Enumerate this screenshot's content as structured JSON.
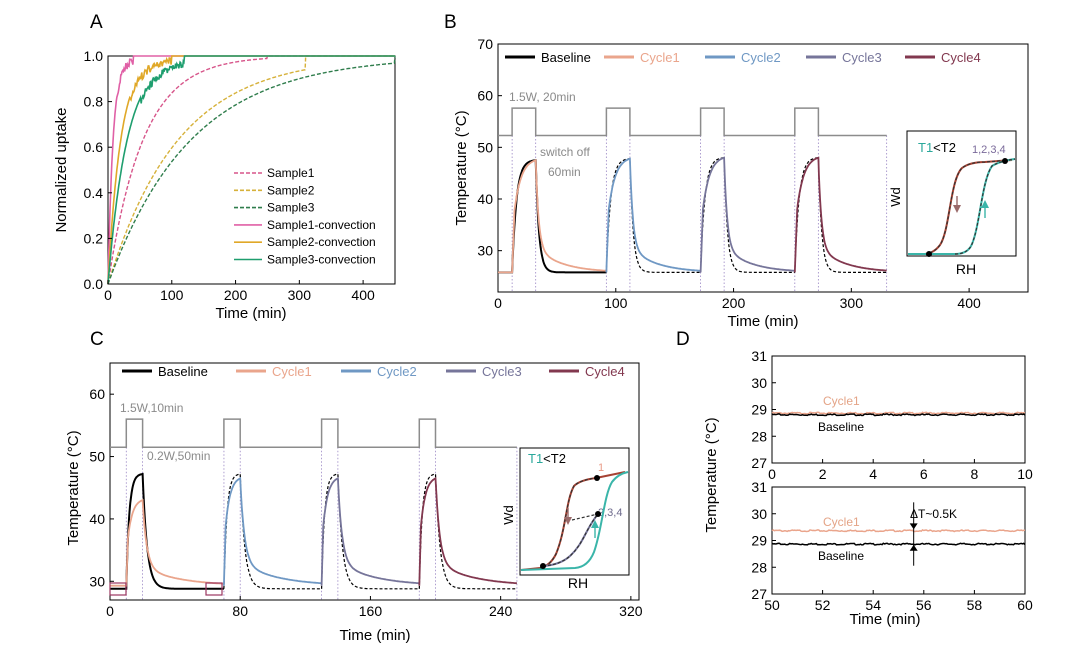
{
  "colors": {
    "sample1": "#d7558a",
    "sample2": "#d6b13a",
    "sample3": "#2f7d4c",
    "sample1_conv": "#e060a6",
    "sample2_conv": "#e0a828",
    "sample3_conv": "#1e9e6e",
    "baseline": "#000000",
    "cycle1": "#eaa58c",
    "cycle2": "#6f98c4",
    "cycle3": "#76759a",
    "cycle4": "#82384f",
    "power": "#8c8c8c",
    "axis": "#000000",
    "teal": "#3ab5a9",
    "inset_red": "#a64233",
    "inset_box": "#9b3660"
  },
  "chart_data": [
    {
      "panel": "A",
      "type": "line",
      "xlabel": "Time (min)",
      "ylabel": "Normalized uptake",
      "xlim": [
        0,
        450
      ],
      "ylim": [
        0,
        1
      ],
      "xticks": [
        0,
        100,
        200,
        300,
        400
      ],
      "yticks": [
        0.0,
        0.2,
        0.4,
        0.6,
        0.8,
        1.0
      ],
      "ytick_labels": [
        "0.0",
        "0.2",
        "0.4",
        "0.6",
        "0.8",
        "1.0"
      ],
      "legend_position": "bottom-right",
      "series": [
        {
          "name": "Sample1",
          "style": "dashed",
          "color_key": "sample1",
          "model": "exp",
          "tau": 55,
          "plateau_at": 250
        },
        {
          "name": "Sample2",
          "style": "dashed",
          "color_key": "sample2",
          "model": "exp",
          "tau": 110,
          "plateau_at": 310
        },
        {
          "name": "Sample3",
          "style": "dashed",
          "color_key": "sample3",
          "model": "exp",
          "tau": 130,
          "plateau_at": 450
        },
        {
          "name": "Sample1-convection",
          "style": "solid",
          "color_key": "sample1_conv",
          "model": "exp",
          "tau": 8,
          "plateau_at": 40
        },
        {
          "name": "Sample2-convection",
          "style": "solid",
          "color_key": "sample2_conv",
          "model": "exp",
          "tau": 20,
          "plateau_at": 100
        },
        {
          "name": "Sample3-convection",
          "style": "solid",
          "color_key": "sample3_conv",
          "model": "exp",
          "tau": 30,
          "plateau_at": 120
        }
      ]
    },
    {
      "panel": "B",
      "type": "line",
      "xlabel": "Time (min)",
      "ylabel": "Temperature (°C)",
      "xlim": [
        0,
        450
      ],
      "ylim": [
        22,
        70
      ],
      "xticks": [
        0,
        100,
        200,
        300,
        400
      ],
      "yticks": [
        30,
        40,
        50,
        60,
        70
      ],
      "legend_position": "top",
      "legend": [
        "Baseline",
        "Cycle1",
        "Cycle2",
        "Cycle3",
        "Cycle4"
      ],
      "power_trace": {
        "baseline": 52.3,
        "high": 57.6,
        "x_start": 0,
        "x_end": 330,
        "pulses": [
          [
            12,
            32
          ],
          [
            92,
            112
          ],
          [
            172,
            192
          ],
          [
            252,
            272
          ]
        ]
      },
      "cycles": [
        {
          "name": "Baseline",
          "color_key": "baseline",
          "start": 12,
          "end": 32,
          "tmin": 25.8,
          "tmax": 47.5,
          "tail": 60,
          "style": "solid"
        },
        {
          "name": "Cycle1",
          "color_key": "cycle1",
          "start": 12,
          "end": 32,
          "tmin": 25.8,
          "tmax": 47.5,
          "tail": 60,
          "style": "solid"
        },
        {
          "name": "Baseline",
          "color_key": "baseline",
          "start": 92,
          "end": 112,
          "tmin": 25.8,
          "tmax": 47.8,
          "tail": 60,
          "style": "dashed"
        },
        {
          "name": "Cycle2",
          "color_key": "cycle2",
          "start": 92,
          "end": 112,
          "tmin": 25.8,
          "tmax": 47.8,
          "tail": 60,
          "style": "solid"
        },
        {
          "name": "Baseline",
          "color_key": "baseline",
          "start": 172,
          "end": 192,
          "tmin": 25.8,
          "tmax": 48,
          "tail": 60,
          "style": "dashed"
        },
        {
          "name": "Cycle3",
          "color_key": "cycle3",
          "start": 172,
          "end": 192,
          "tmin": 25.8,
          "tmax": 48,
          "tail": 60,
          "style": "solid"
        },
        {
          "name": "Baseline",
          "color_key": "baseline",
          "start": 252,
          "end": 272,
          "tmin": 25.8,
          "tmax": 48,
          "tail": 58,
          "style": "dashed"
        },
        {
          "name": "Cycle4",
          "color_key": "cycle4",
          "start": 252,
          "end": 272,
          "tmin": 25.8,
          "tmax": 48,
          "tail": 58,
          "style": "solid"
        }
      ],
      "annotations": {
        "power_label": "1.5W, 20min",
        "switch_off": "switch off",
        "switch_off_time": "60min"
      },
      "inset": {
        "condition_a": "T1",
        "condition_lt": "<",
        "condition_b": "T2",
        "cycle_label": "1,2,3,4",
        "ylabel": "Wd",
        "xlabel": "RH"
      }
    },
    {
      "panel": "C",
      "type": "line",
      "xlabel": "Time (min)",
      "ylabel": "Temperature (°C)",
      "xlim": [
        0,
        325
      ],
      "ylim": [
        27,
        65
      ],
      "xticks": [
        0,
        80,
        160,
        240,
        320
      ],
      "yticks": [
        30,
        40,
        50,
        60
      ],
      "legend_position": "top",
      "legend": [
        "Baseline",
        "Cycle1",
        "Cycle2",
        "Cycle3",
        "Cycle4"
      ],
      "power_trace": {
        "baseline": 51.5,
        "high": 56.0,
        "x_start": 0,
        "x_end": 250,
        "pulses": [
          [
            10,
            20
          ],
          [
            70,
            80
          ],
          [
            130,
            140
          ],
          [
            190,
            200
          ]
        ]
      },
      "cycles": [
        {
          "name": "Baseline",
          "color_key": "baseline",
          "start": 10,
          "end": 20,
          "tmin": 28.8,
          "tmax": 47.2,
          "tail": 50,
          "style": "solid"
        },
        {
          "name": "Cycle1",
          "color_key": "cycle1",
          "start": 10,
          "end": 20,
          "tmin": 29.3,
          "tmax": 43,
          "tail": 50,
          "style": "solid"
        },
        {
          "name": "Baseline",
          "color_key": "baseline",
          "start": 70,
          "end": 80,
          "tmin": 28.8,
          "tmax": 47.2,
          "tail": 50,
          "style": "dashed"
        },
        {
          "name": "Cycle2",
          "color_key": "cycle2",
          "start": 70,
          "end": 80,
          "tmin": 29.3,
          "tmax": 46.5,
          "tail": 50,
          "style": "solid"
        },
        {
          "name": "Baseline",
          "color_key": "baseline",
          "start": 130,
          "end": 140,
          "tmin": 28.8,
          "tmax": 47.2,
          "tail": 50,
          "style": "dashed"
        },
        {
          "name": "Cycle3",
          "color_key": "cycle3",
          "start": 130,
          "end": 140,
          "tmin": 29.3,
          "tmax": 46.5,
          "tail": 50,
          "style": "solid"
        },
        {
          "name": "Baseline",
          "color_key": "baseline",
          "start": 190,
          "end": 200,
          "tmin": 28.8,
          "tmax": 47.2,
          "tail": 50,
          "style": "dashed"
        },
        {
          "name": "Cycle4",
          "color_key": "cycle4",
          "start": 190,
          "end": 200,
          "tmin": 29.3,
          "tmax": 46.5,
          "tail": 50,
          "style": "solid"
        }
      ],
      "annotations": {
        "power_label": "1.5W,10min",
        "low_power": "0.2W,50min"
      },
      "inset": {
        "condition_a": "T1",
        "condition_lt": "<",
        "condition_b": "T2",
        "cycle1_label": "1",
        "cycle_label": "2,3,4",
        "ylabel": "Wd",
        "xlabel": "RH"
      }
    },
    {
      "panel": "D-top",
      "type": "line",
      "xlabel": "",
      "ylabel": "Temperature (°C)",
      "xlim": [
        0,
        10
      ],
      "ylim": [
        27,
        31
      ],
      "xticks": [
        0,
        2,
        4,
        6,
        8,
        10
      ],
      "yticks": [
        27,
        28,
        29,
        30,
        31
      ],
      "series": [
        {
          "name": "Cycle1",
          "color_key": "cycle1",
          "level": 28.88
        },
        {
          "name": "Baseline",
          "color_key": "baseline",
          "level": 28.82
        }
      ]
    },
    {
      "panel": "D-bottom",
      "type": "line",
      "xlabel": "Time (min)",
      "ylabel": "Temperature (°C)",
      "xlim": [
        50,
        60
      ],
      "ylim": [
        27,
        31
      ],
      "xticks": [
        50,
        52,
        54,
        56,
        58,
        60
      ],
      "yticks": [
        27,
        28,
        29,
        30,
        31
      ],
      "series": [
        {
          "name": "Cycle1",
          "color_key": "cycle1",
          "level": 29.38
        },
        {
          "name": "Baseline",
          "color_key": "baseline",
          "level": 28.88
        }
      ],
      "annotation": "ΔT~0.5K",
      "annotation_x": 55.6
    }
  ],
  "panel_labels": {
    "a": "A",
    "b": "B",
    "c": "C",
    "d": "D"
  }
}
